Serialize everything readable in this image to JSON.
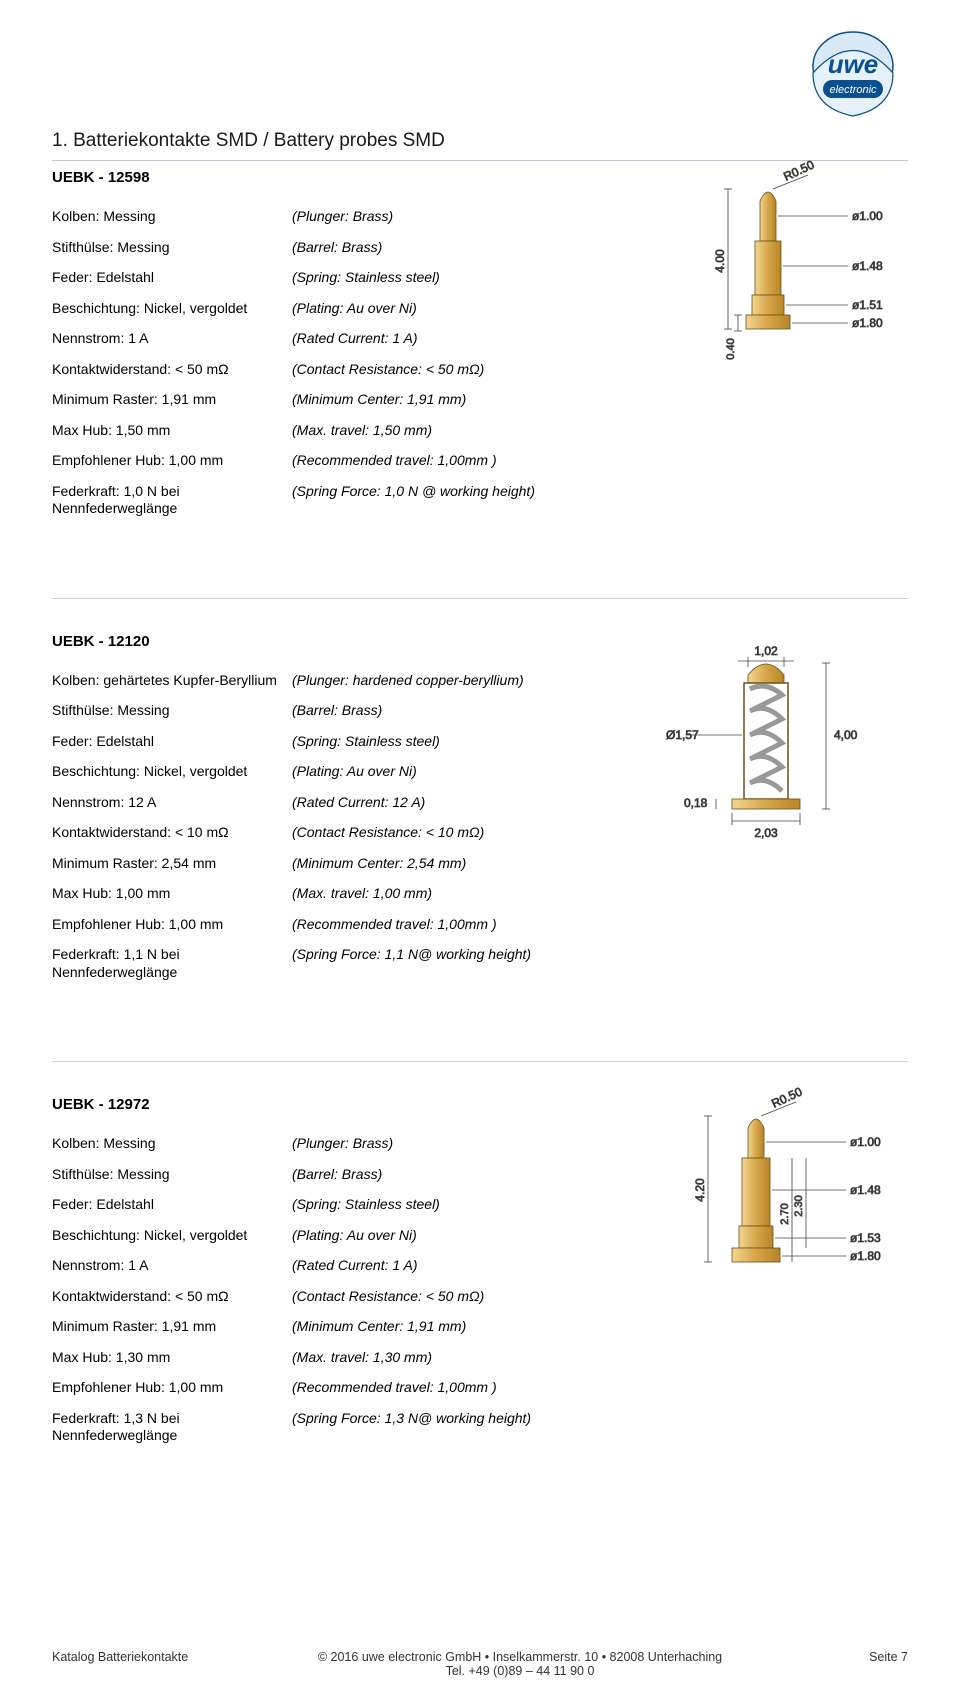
{
  "brand": {
    "name": "uwe",
    "subtitle": "electronic"
  },
  "page_title": "1. Batteriekontakte SMD / Battery probes SMD",
  "products": [
    {
      "part_no": "UEBK - 12598",
      "specs": [
        {
          "de": "Kolben: Messing",
          "en": "(Plunger: Brass)"
        },
        {
          "de": "Stifthülse: Messing",
          "en": "(Barrel: Brass)"
        },
        {
          "de": "Feder: Edelstahl",
          "en": "(Spring: Stainless steel)"
        },
        {
          "de": "Beschichtung: Nickel, vergoldet",
          "en": "(Plating: Au over Ni)"
        },
        {
          "de": "Nennstrom: 1 A",
          "en": "(Rated Current: 1 A)"
        },
        {
          "de": "Kontaktwiderstand: < 50 mΩ",
          "en": "(Contact Resistance: < 50 mΩ)"
        },
        {
          "de": "Minimum Raster: 1,91 mm",
          "en": "(Minimum Center: 1,91 mm)"
        },
        {
          "de": "Max Hub: 1,50 mm",
          "en": "(Max. travel: 1,50 mm)"
        },
        {
          "de": "Empfohlener Hub: 1,00 mm",
          "en": "(Recommended travel: 1,00mm )"
        },
        {
          "de": "Federkraft: 1,0 N bei Nennfederweglänge",
          "en": "(Spring Force: 1,0 N @ working height)"
        }
      ],
      "diagram": {
        "type": "pogo-pin-drawing",
        "labels": [
          "R0.50",
          "ø1.00",
          "ø1.48",
          "ø1.51",
          "ø1.80",
          "4.00",
          "0.40"
        ],
        "body_top_d": 1.0,
        "mid1_d": 1.48,
        "mid2_d": 1.51,
        "base_d": 1.8,
        "total_h": 4.0,
        "base_h": 0.4,
        "tip_r": 0.5,
        "fill": "#d6a64a",
        "shade": "#b88527",
        "stroke": "#6a5018"
      }
    },
    {
      "part_no": "UEBK - 12120",
      "specs": [
        {
          "de": "Kolben: gehärtetes Kupfer-Beryllium",
          "en": "(Plunger: hardened copper-beryllium)"
        },
        {
          "de": "Stifthülse: Messing",
          "en": "(Barrel: Brass)"
        },
        {
          "de": "Feder: Edelstahl",
          "en": "(Spring: Stainless steel)"
        },
        {
          "de": "Beschichtung: Nickel, vergoldet",
          "en": "(Plating: Au over Ni)"
        },
        {
          "de": "Nennstrom: 12 A",
          "en": "(Rated Current: 12 A)"
        },
        {
          "de": "Kontaktwiderstand: < 10 mΩ",
          "en": "(Contact Resistance: < 10 mΩ)"
        },
        {
          "de": "Minimum Raster: 2,54 mm",
          "en": "(Minimum Center: 2,54 mm)"
        },
        {
          "de": "Max Hub: 1,00 mm",
          "en": "(Max. travel: 1,00 mm)"
        },
        {
          "de": "Empfohlener Hub: 1,00 mm",
          "en": "(Recommended travel: 1,00mm )"
        },
        {
          "de": "Federkraft: 1,1 N bei Nennfederweglänge",
          "en": "(Spring Force: 1,1 N@ working height)"
        }
      ],
      "diagram": {
        "type": "spring-probe-drawing",
        "labels": [
          "1,02",
          "Ø1,57",
          "4,00",
          "0,18",
          "2,03"
        ],
        "top_d": 1.02,
        "barrel_d": 1.57,
        "base_d": 2.03,
        "total_h": 4.0,
        "base_h": 0.18,
        "fill": "#d6a64a",
        "spring": "#a8a8a8",
        "stroke": "#6a5018"
      }
    },
    {
      "part_no": "UEBK - 12972",
      "specs": [
        {
          "de": "Kolben: Messing",
          "en": "(Plunger: Brass)"
        },
        {
          "de": "Stifthülse: Messing",
          "en": "(Barrel: Brass)"
        },
        {
          "de": "Feder: Edelstahl",
          "en": "(Spring: Stainless steel)"
        },
        {
          "de": "Beschichtung: Nickel, vergoldet",
          "en": "(Plating: Au over Ni)"
        },
        {
          "de": "Nennstrom: 1 A",
          "en": "(Rated Current: 1 A)"
        },
        {
          "de": "Kontaktwiderstand: < 50 mΩ",
          "en": "(Contact Resistance: < 50 mΩ)"
        },
        {
          "de": "Minimum Raster: 1,91 mm",
          "en": "(Minimum Center: 1,91 mm)"
        },
        {
          "de": "Max Hub: 1,30 mm",
          "en": "(Max. travel: 1,30 mm)"
        },
        {
          "de": "Empfohlener Hub: 1,00 mm",
          "en": "(Recommended travel: 1,00mm )"
        },
        {
          "de": "Federkraft: 1,3 N bei Nennfederweglänge",
          "en": "(Spring Force: 1,3 N@ working height)"
        }
      ],
      "diagram": {
        "type": "pogo-pin-drawing-tall",
        "labels": [
          "R0.50",
          "ø1.00",
          "ø1.48",
          "ø1.53",
          "ø1.80",
          "4.20",
          "2.70",
          "2.30"
        ],
        "body_top_d": 1.0,
        "mid1_d": 1.48,
        "mid2_d": 1.53,
        "base_d": 1.8,
        "total_h": 4.2,
        "inner_h1": 2.7,
        "inner_h2": 2.3,
        "tip_r": 0.5,
        "fill": "#d6a64a",
        "shade": "#b88527",
        "stroke": "#6a5018"
      }
    }
  ],
  "footer": {
    "left": "Katalog Batteriekontakte",
    "center_line1": "© 2016 uwe electronic GmbH • Inselkammerstr. 10 • 82008 Unterhaching",
    "center_line2": "Tel. +49 (0)89 – 44 11 90 0",
    "right": "Seite 7"
  }
}
